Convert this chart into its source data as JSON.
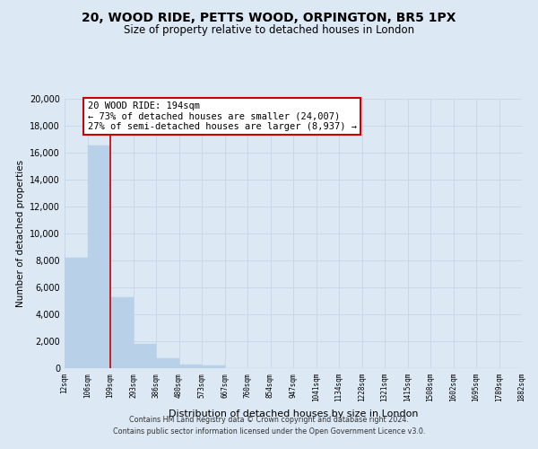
{
  "title_line1": "20, WOOD RIDE, PETTS WOOD, ORPINGTON, BR5 1PX",
  "title_line2": "Size of property relative to detached houses in London",
  "xlabel": "Distribution of detached houses by size in London",
  "ylabel": "Number of detached properties",
  "bar_labels": [
    "12sqm",
    "106sqm",
    "199sqm",
    "293sqm",
    "386sqm",
    "480sqm",
    "573sqm",
    "667sqm",
    "760sqm",
    "854sqm",
    "947sqm",
    "1041sqm",
    "1134sqm",
    "1228sqm",
    "1321sqm",
    "1415sqm",
    "1508sqm",
    "1602sqm",
    "1695sqm",
    "1789sqm",
    "1882sqm"
  ],
  "bar_values": [
    8200,
    16500,
    5300,
    1800,
    750,
    280,
    230,
    0,
    0,
    0,
    0,
    0,
    0,
    0,
    0,
    0,
    0,
    0,
    0,
    0
  ],
  "bar_color": "#b8d0e8",
  "bar_edge_color": "#b8d0e8",
  "vline_x_index": 2,
  "vline_color": "#cc0000",
  "annotation_title": "20 WOOD RIDE: 194sqm",
  "annotation_line1": "← 73% of detached houses are smaller (24,007)",
  "annotation_line2": "27% of semi-detached houses are larger (8,937) →",
  "annotation_box_facecolor": "#ffffff",
  "annotation_box_edgecolor": "#cc0000",
  "ylim": [
    0,
    20000
  ],
  "yticks": [
    0,
    2000,
    4000,
    6000,
    8000,
    10000,
    12000,
    14000,
    16000,
    18000,
    20000
  ],
  "grid_color": "#c8d8e8",
  "background_color": "#dce8f4",
  "footer_line1": "Contains HM Land Registry data © Crown copyright and database right 2024.",
  "footer_line2": "Contains public sector information licensed under the Open Government Licence v3.0."
}
